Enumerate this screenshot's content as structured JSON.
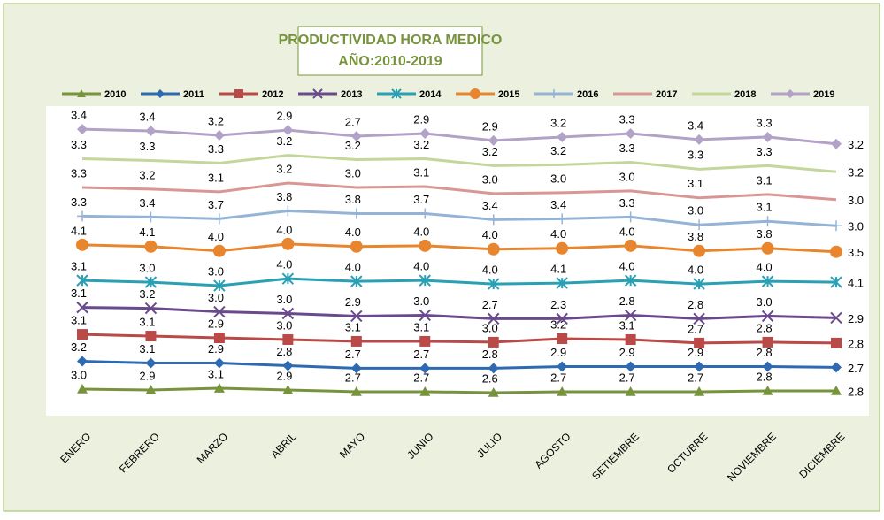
{
  "chart_data": {
    "type": "stacked-line",
    "title": "PRODUCTIVIDAD  HORA MEDICO",
    "subtitle": "AÑO:2010-2019",
    "categories": [
      "ENERO",
      "FEBRERO",
      "MARZO",
      "ABRIL",
      "MAYO",
      "JUNIO",
      "JULIO",
      "AGOSTO",
      "SETIEMBRE",
      "OCTUBRE",
      "NOVIEMBRE",
      "DICIEMBRE"
    ],
    "legend": "top",
    "series": [
      {
        "name": "2010",
        "color": "#77933c",
        "marker": "triangle",
        "values": [
          3.0,
          2.9,
          3.1,
          2.9,
          2.7,
          2.7,
          2.6,
          2.7,
          2.7,
          2.7,
          2.8,
          2.8
        ],
        "value_labels": [
          "3.0",
          "2.9",
          "3.1",
          "2.9",
          "2.7",
          "2.7",
          "2.6",
          "2.7",
          "2.7",
          "2.7",
          "2.8",
          "2.8"
        ]
      },
      {
        "name": "2011",
        "color": "#2e6ab1",
        "marker": "diamond",
        "values": [
          3.2,
          3.1,
          2.9,
          2.8,
          2.7,
          2.7,
          2.8,
          2.9,
          2.9,
          2.9,
          2.8,
          2.7
        ],
        "value_labels": [
          "3.2",
          "3.1",
          "2.9",
          "2.8",
          "2.7",
          "2.7",
          "2.8",
          "2.9",
          "2.9",
          "2.9",
          "2.8",
          "2.7"
        ]
      },
      {
        "name": "2012",
        "color": "#b94a48",
        "marker": "square",
        "values": [
          3.1,
          3.1,
          2.9,
          3.0,
          3.1,
          3.1,
          3.0,
          3.2,
          3.1,
          2.7,
          2.8,
          2.8
        ],
        "value_labels": [
          "3.1",
          "3.1",
          "2.9",
          "3.0",
          "3.1",
          "3.1",
          "3.0",
          "3.2",
          "3.1",
          "2.7",
          "2.8",
          "2.8"
        ]
      },
      {
        "name": "2013",
        "color": "#6a4a8c",
        "marker": "x",
        "values": [
          3.1,
          3.2,
          3.0,
          3.0,
          2.9,
          3.0,
          2.7,
          2.3,
          2.8,
          2.8,
          3.0,
          2.9
        ],
        "value_labels": [
          "3.1",
          "3.2",
          "3.0",
          "3.0",
          "2.9",
          "3.0",
          "2.7",
          "2.3",
          "2.8",
          "2.8",
          "3.0",
          "2.9"
        ]
      },
      {
        "name": "2014",
        "color": "#2aa0b5",
        "marker": "asterisk",
        "values": [
          3.1,
          3.0,
          3.0,
          4.0,
          4.0,
          4.0,
          4.0,
          4.1,
          4.0,
          4.0,
          4.0,
          4.1
        ],
        "value_labels": [
          "3.1",
          "3.0",
          "3.0",
          "4.0",
          "4.0",
          "4.0",
          "4.0",
          "4.1",
          "4.0",
          "4.0",
          "4.0",
          "4.1"
        ]
      },
      {
        "name": "2015",
        "color": "#e8862f",
        "marker": "circle",
        "values": [
          4.1,
          4.1,
          4.0,
          4.0,
          4.0,
          4.0,
          4.0,
          4.0,
          4.0,
          3.8,
          3.8,
          3.5
        ],
        "value_labels": [
          "4.1",
          "4.1",
          "4.0",
          "4.0",
          "4.0",
          "4.0",
          "4.0",
          "4.0",
          "4.0",
          "3.8",
          "3.8",
          "3.5"
        ]
      },
      {
        "name": "2016",
        "color": "#95b3d7",
        "marker": "plus",
        "values": [
          3.3,
          3.4,
          3.7,
          3.8,
          3.8,
          3.7,
          3.4,
          3.4,
          3.3,
          3.0,
          3.1,
          3.0
        ],
        "value_labels": [
          "3.3",
          "3.4",
          "3.7",
          "3.8",
          "3.8",
          "3.7",
          "3.4",
          "3.4",
          "3.3",
          "3.0",
          "3.1",
          "3.0"
        ]
      },
      {
        "name": "2017",
        "color": "#d99694",
        "marker": "none",
        "values": [
          3.3,
          3.2,
          3.1,
          3.2,
          3.0,
          3.1,
          3.0,
          3.0,
          3.0,
          3.1,
          3.1,
          3.0
        ],
        "value_labels": [
          "3.3",
          "3.2",
          "3.1",
          "3.2",
          "3.0",
          "3.1",
          "3.0",
          "3.0",
          "3.0",
          "3.1",
          "3.1",
          "3.0"
        ]
      },
      {
        "name": "2018",
        "color": "#c3d69b",
        "marker": "none",
        "values": [
          3.3,
          3.3,
          3.3,
          3.2,
          3.2,
          3.2,
          3.2,
          3.2,
          3.3,
          3.3,
          3.3,
          3.2
        ],
        "value_labels": [
          "3.3",
          "3.3",
          "3.3",
          "3.2",
          "3.2",
          "3.2",
          "3.2",
          "3.2",
          "3.3",
          "3.3",
          "3.3",
          "3.2"
        ]
      },
      {
        "name": "2019",
        "color": "#b3a2c7",
        "marker": "diamond",
        "values": [
          3.4,
          3.4,
          3.2,
          2.9,
          2.7,
          2.9,
          2.9,
          3.2,
          3.3,
          3.4,
          3.3,
          3.2
        ],
        "value_labels": [
          "3.4",
          "3.4",
          "3.2",
          "2.9",
          "2.7",
          "2.9",
          "2.9",
          "3.2",
          "3.3",
          "3.4",
          "3.3",
          "3.2"
        ]
      }
    ]
  }
}
